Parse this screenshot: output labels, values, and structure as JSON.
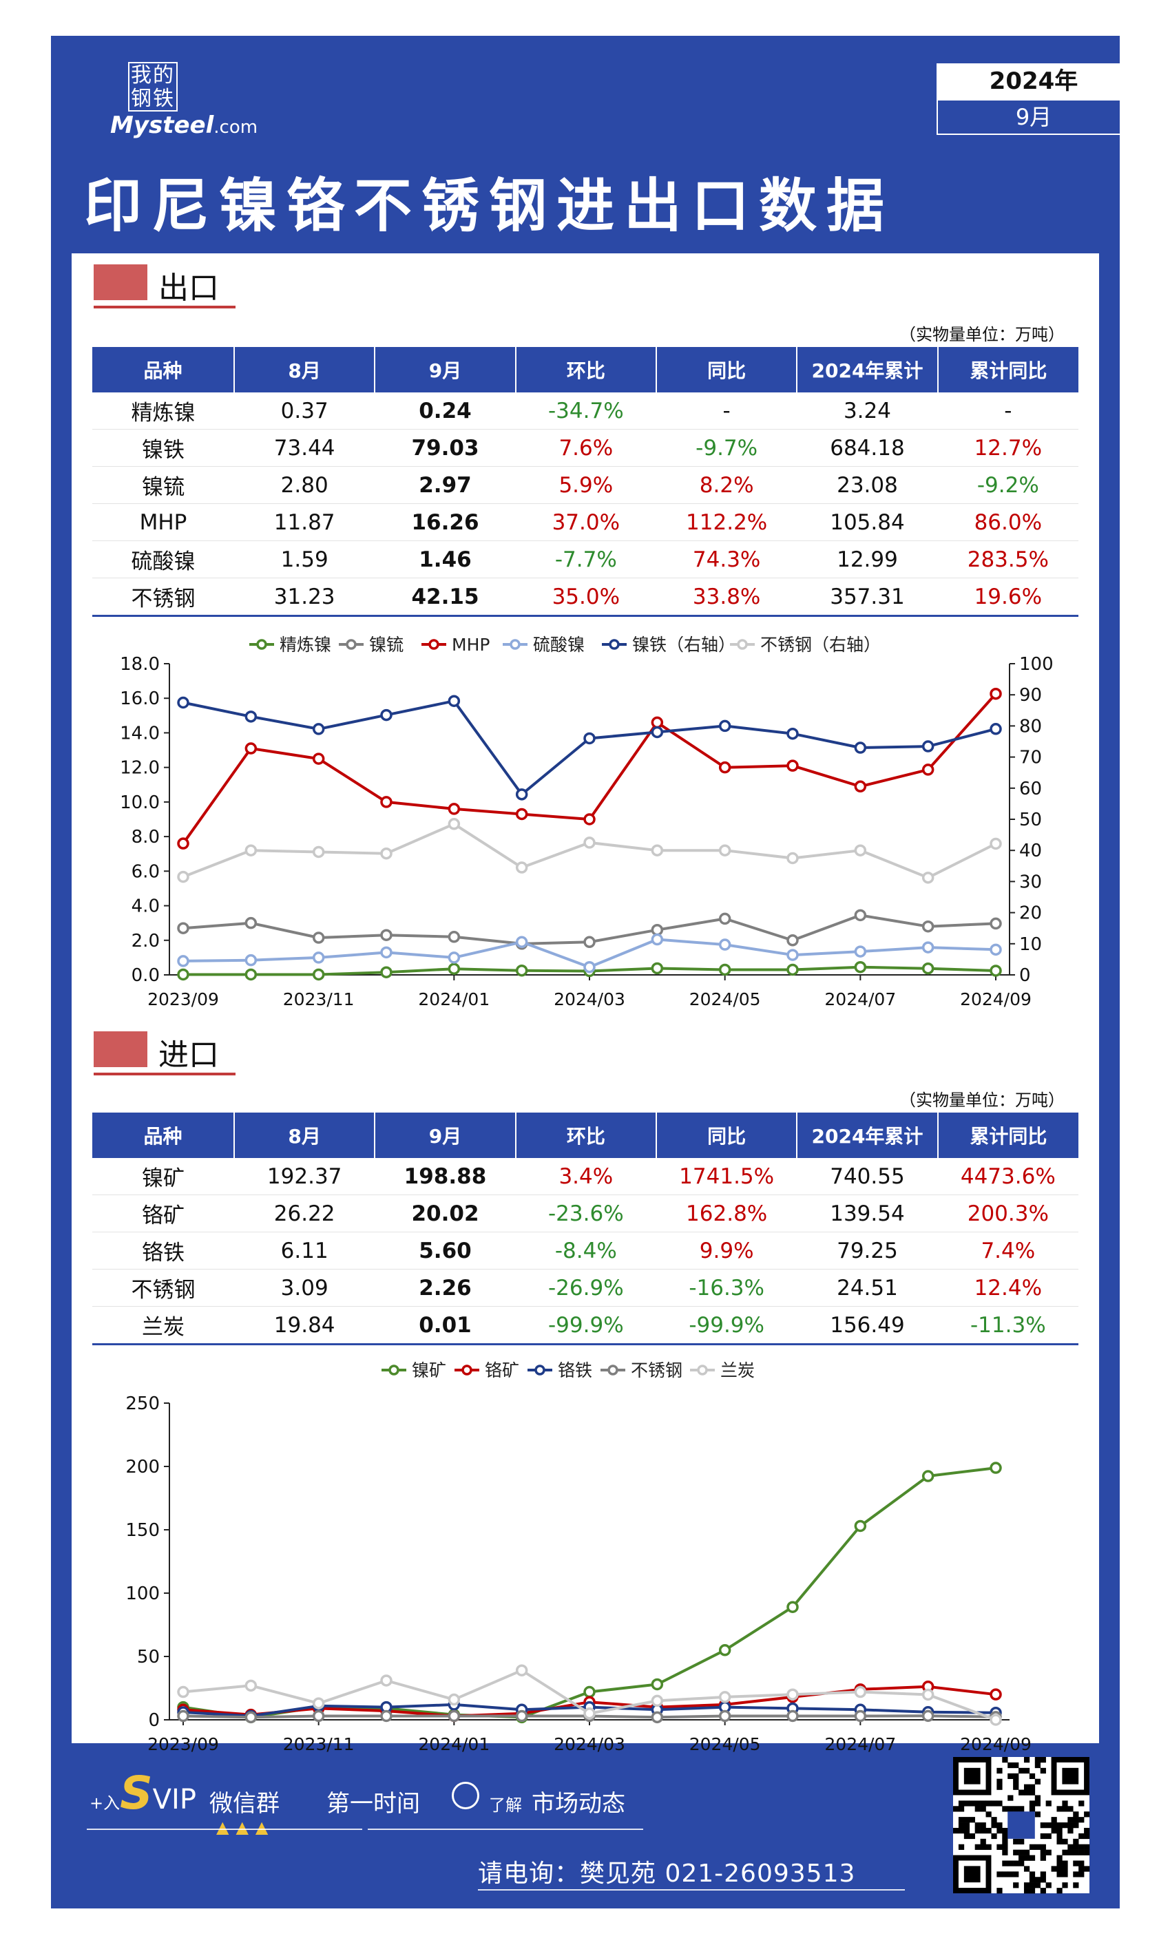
{
  "logo": {
    "cn": "我的钢铁",
    "en_main": "Mysteel",
    "en_suffix": ".com"
  },
  "date": {
    "year": "2024年",
    "month": "9月"
  },
  "title": "印尼镍铬不锈钢进出口数据",
  "export": {
    "heading": "出口",
    "unit": "（实物量单位：万吨）",
    "columns": [
      "品种",
      "8月",
      "9月",
      "环比",
      "同比",
      "2024年累计",
      "累计同比"
    ],
    "rows": [
      [
        "精炼镍",
        "0.37",
        "0.24",
        "-34.7%",
        "-",
        "3.24",
        "-"
      ],
      [
        "镍铁",
        "73.44",
        "79.03",
        "7.6%",
        "-9.7%",
        "684.18",
        "12.7%"
      ],
      [
        "镍锍",
        "2.80",
        "2.97",
        "5.9%",
        "8.2%",
        "23.08",
        "-9.2%"
      ],
      [
        "MHP",
        "11.87",
        "16.26",
        "37.0%",
        "112.2%",
        "105.84",
        "86.0%"
      ],
      [
        "硫酸镍",
        "1.59",
        "1.46",
        "-7.7%",
        "74.3%",
        "12.99",
        "283.5%"
      ],
      [
        "不锈钢",
        "31.23",
        "42.15",
        "35.0%",
        "33.8%",
        "357.31",
        "19.6%"
      ]
    ]
  },
  "import": {
    "heading": "进口",
    "unit": "（实物量单位：万吨）",
    "columns": [
      "品种",
      "8月",
      "9月",
      "环比",
      "同比",
      "2024年累计",
      "累计同比"
    ],
    "rows": [
      [
        "镍矿",
        "192.37",
        "198.88",
        "3.4%",
        "1741.5%",
        "740.55",
        "4473.6%"
      ],
      [
        "铬矿",
        "26.22",
        "20.02",
        "-23.6%",
        "162.8%",
        "139.54",
        "200.3%"
      ],
      [
        "铬铁",
        "6.11",
        "5.60",
        "-8.4%",
        "9.9%",
        "79.25",
        "7.4%"
      ],
      [
        "不锈钢",
        "3.09",
        "2.26",
        "-26.9%",
        "-16.3%",
        "24.51",
        "12.4%"
      ],
      [
        "兰炭",
        "19.84",
        "0.01",
        "-99.9%",
        "-99.9%",
        "156.49",
        "-11.3%"
      ]
    ]
  },
  "chart_data": [
    {
      "type": "line",
      "title": "",
      "x": [
        "2023/09",
        "2023/10",
        "2023/11",
        "2023/12",
        "2024/01",
        "2024/02",
        "2024/03",
        "2024/04",
        "2024/05",
        "2024/06",
        "2024/07",
        "2024/08",
        "2024/09"
      ],
      "xtick_labels": [
        "2023/09",
        "2023/11",
        "2024/01",
        "2024/03",
        "2024/05",
        "2024/07",
        "2024/09"
      ],
      "ylim": [
        0,
        18
      ],
      "yticks": [
        "0.0",
        "2.0",
        "4.0",
        "6.0",
        "8.0",
        "10.0",
        "12.0",
        "14.0",
        "16.0",
        "18.0"
      ],
      "y2lim": [
        0,
        100
      ],
      "y2ticks": [
        "0",
        "10",
        "20",
        "30",
        "40",
        "50",
        "60",
        "70",
        "80",
        "90",
        "100"
      ],
      "legend_position": "top",
      "series": [
        {
          "name": "精炼镍",
          "axis": "left",
          "color": "#4d8a2c",
          "values": [
            0.02,
            0.02,
            0.02,
            0.15,
            0.35,
            0.25,
            0.22,
            0.38,
            0.3,
            0.3,
            0.45,
            0.37,
            0.24
          ]
        },
        {
          "name": "镍锍",
          "axis": "left",
          "color": "#7f7f7f",
          "values": [
            2.7,
            3.0,
            2.15,
            2.3,
            2.2,
            1.8,
            1.9,
            2.6,
            3.25,
            2.0,
            3.45,
            2.8,
            2.97
          ]
        },
        {
          "name": "MHP",
          "axis": "left",
          "color": "#c00000",
          "values": [
            7.6,
            13.1,
            12.5,
            10.0,
            9.6,
            9.3,
            9.0,
            14.6,
            12.0,
            12.1,
            10.9,
            11.87,
            16.26
          ]
        },
        {
          "name": "硫酸镍",
          "axis": "left",
          "color": "#8eaadb",
          "values": [
            0.8,
            0.85,
            1.0,
            1.3,
            1.0,
            1.9,
            0.45,
            2.05,
            1.75,
            1.15,
            1.35,
            1.59,
            1.46
          ]
        },
        {
          "name": "镍铁（右轴）",
          "axis": "right",
          "color": "#1f3c88",
          "values": [
            87.5,
            83,
            79,
            83.5,
            88,
            58,
            76,
            78,
            80,
            77.5,
            73,
            73.44,
            79.03
          ]
        },
        {
          "name": "不锈钢（右轴）",
          "axis": "right",
          "color": "#c8c8c8",
          "values": [
            31.5,
            40,
            39.5,
            39,
            48.5,
            34.5,
            42.5,
            40,
            40,
            37.5,
            40,
            31.23,
            42.15
          ]
        }
      ]
    },
    {
      "type": "line",
      "title": "",
      "x": [
        "2023/09",
        "2023/10",
        "2023/11",
        "2023/12",
        "2024/01",
        "2024/02",
        "2024/03",
        "2024/04",
        "2024/05",
        "2024/06",
        "2024/07",
        "2024/08",
        "2024/09"
      ],
      "xtick_labels": [
        "2023/09",
        "2023/11",
        "2024/01",
        "2024/03",
        "2024/05",
        "2024/07",
        "2024/09"
      ],
      "ylim": [
        0,
        250
      ],
      "yticks": [
        "0",
        "50",
        "100",
        "150",
        "200",
        "250"
      ],
      "legend_position": "top",
      "series": [
        {
          "name": "镍矿",
          "color": "#4d8a2c",
          "values": [
            10,
            2,
            10,
            9,
            4,
            2,
            22,
            28,
            55,
            89,
            153,
            192.37,
            198.88
          ]
        },
        {
          "name": "铬矿",
          "color": "#c00000",
          "values": [
            8,
            4,
            9,
            7,
            3,
            5,
            14,
            10,
            12,
            18,
            24,
            26.22,
            20.02
          ]
        },
        {
          "name": "铬铁",
          "color": "#1f3c88",
          "values": [
            6,
            3,
            11,
            10,
            12,
            8,
            10,
            8,
            10,
            9,
            8,
            6.11,
            5.6
          ]
        },
        {
          "name": "不锈钢",
          "color": "#7f7f7f",
          "values": [
            3,
            2,
            3,
            3,
            3,
            3,
            3,
            2,
            3,
            3,
            3,
            3.09,
            2.26
          ]
        },
        {
          "name": "兰炭",
          "color": "#c8c8c8",
          "values": [
            22,
            27,
            13,
            31,
            16,
            39,
            5,
            15,
            18,
            20,
            22,
            19.84,
            0.01
          ]
        }
      ]
    }
  ],
  "footer": {
    "plus_in": "+入",
    "s_letter": "S",
    "vip": "VIP",
    "wechat_group": "微信群",
    "triangles": "▲▲▲",
    "first_time": "第一时间",
    "understand": "了解",
    "market": "市场动态",
    "contact": "请电询：樊见苑  021-26093513"
  }
}
